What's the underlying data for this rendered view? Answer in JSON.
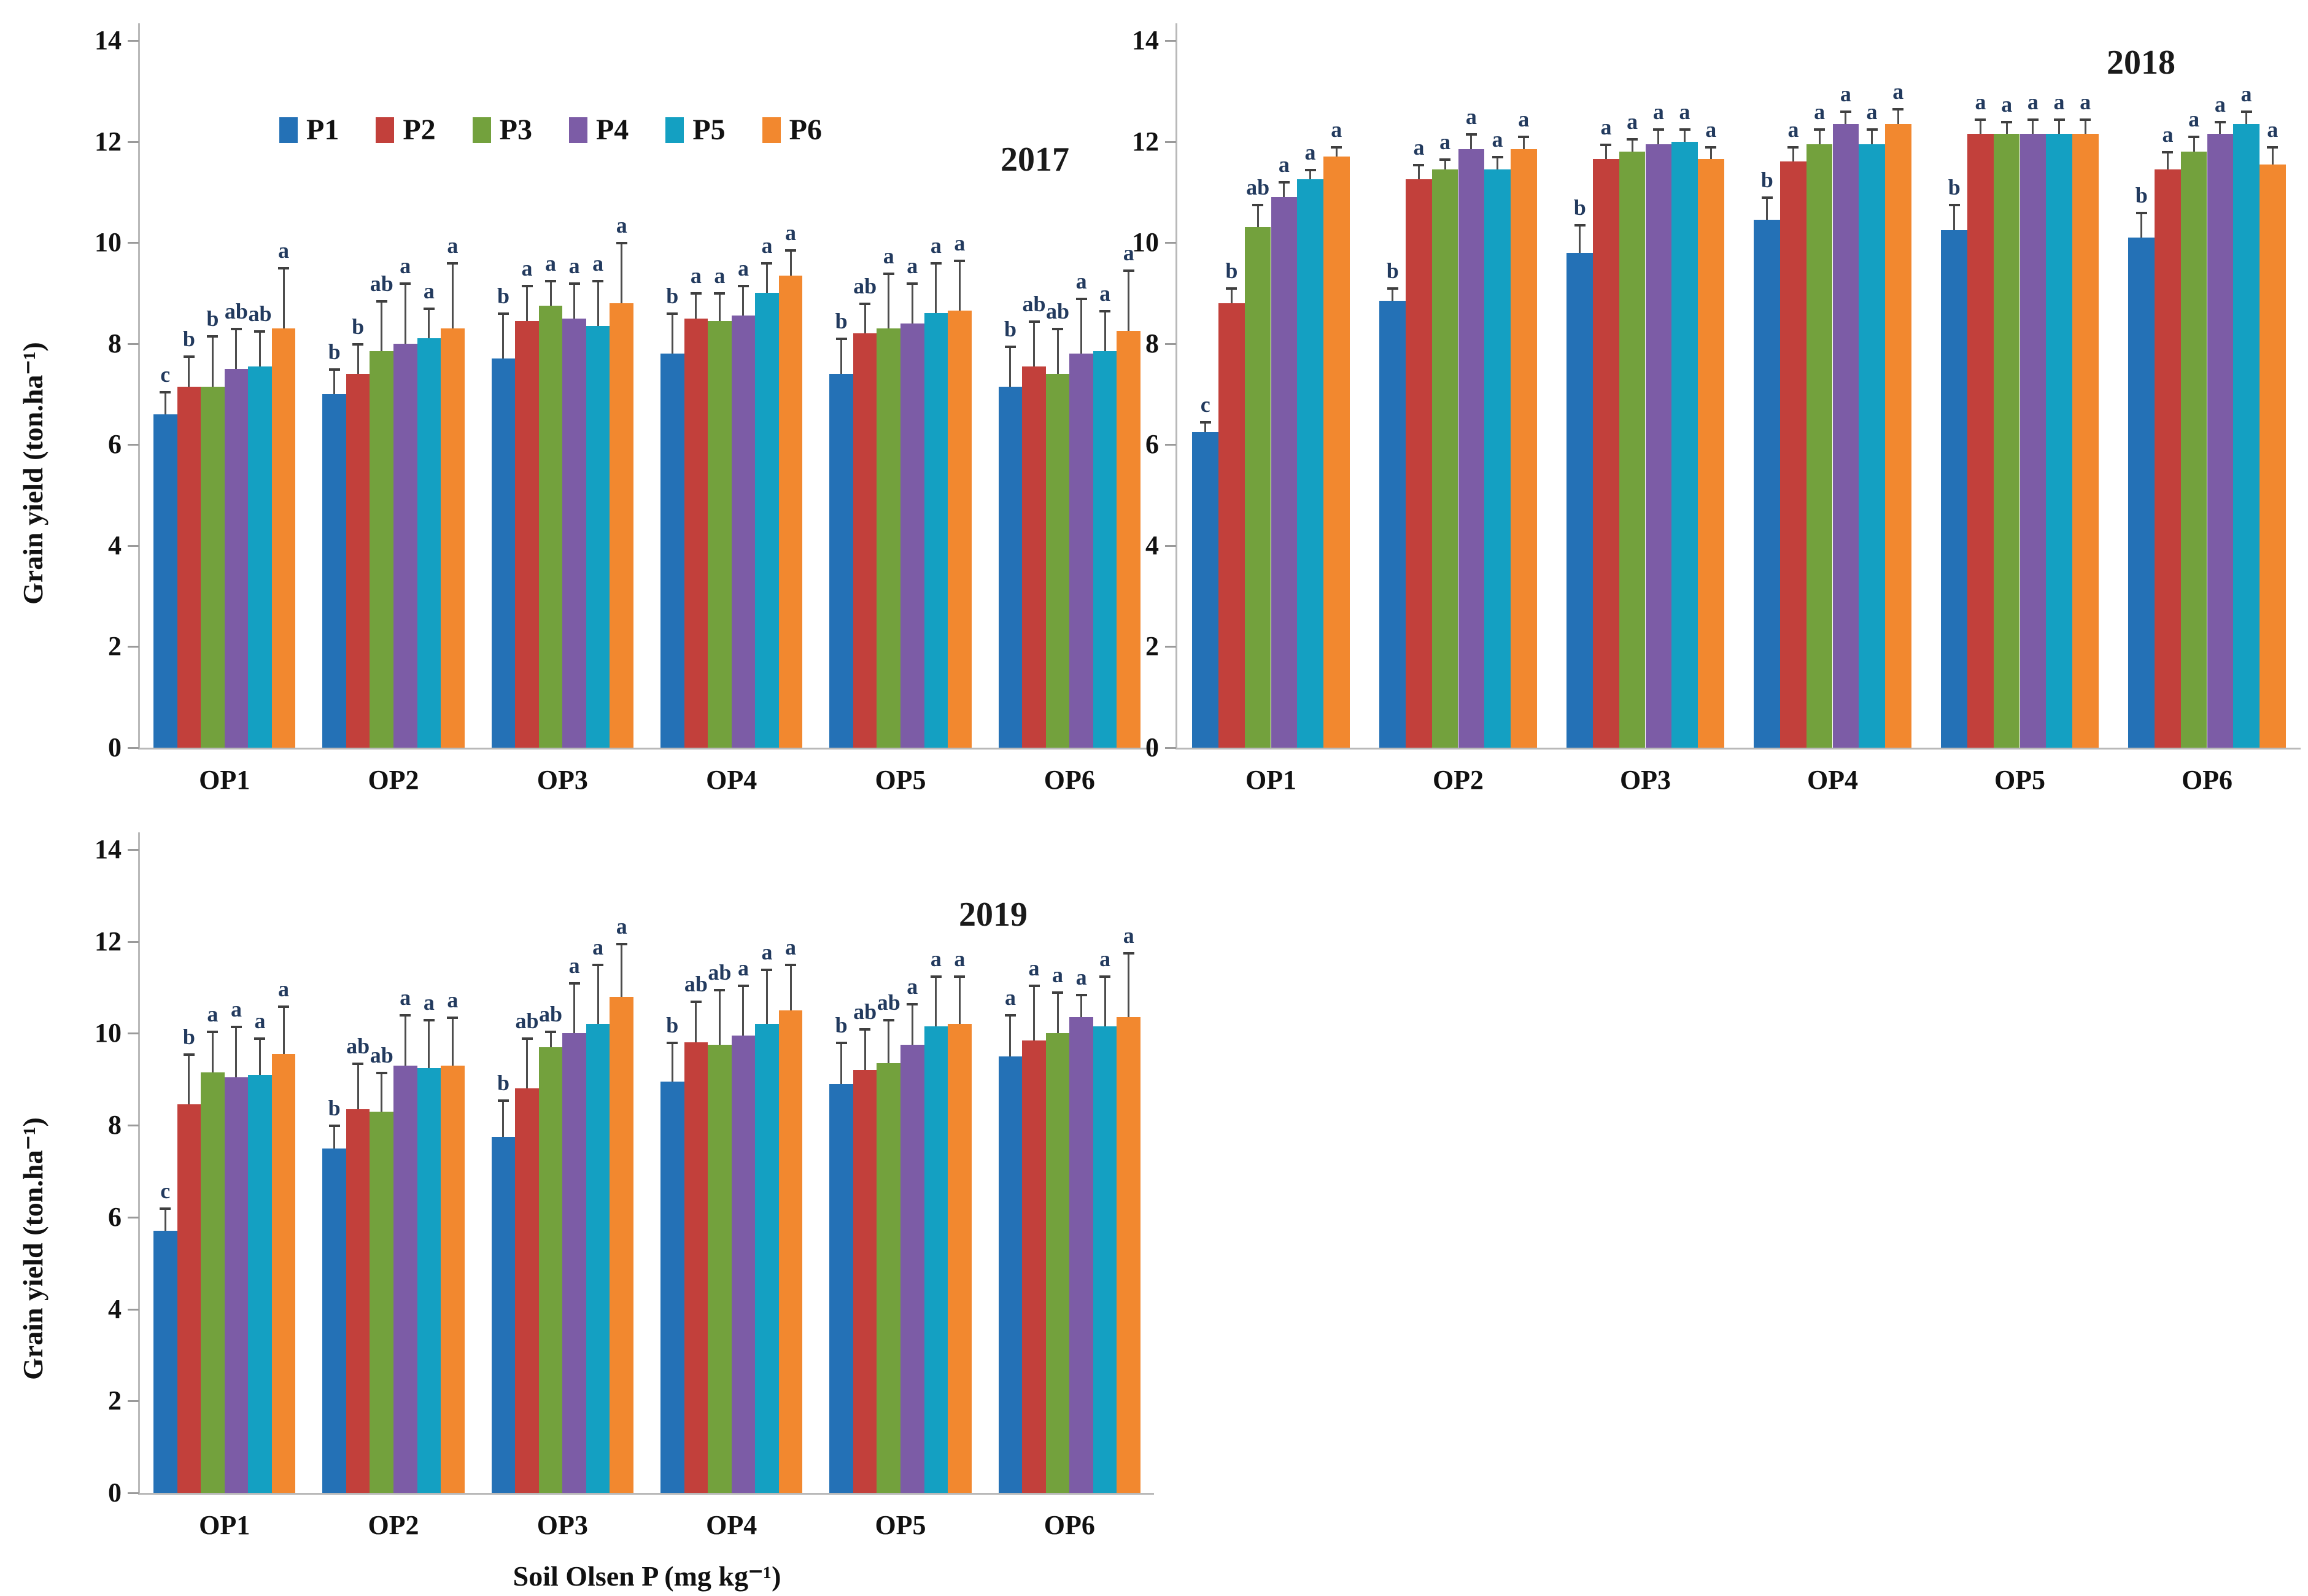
{
  "figure": {
    "background": "#ffffff",
    "error_bar_color": "#4d4d4d",
    "letter_color": "#223a5e",
    "axis_color": "#b9b9b9"
  },
  "chart_data": [
    {
      "type": "bar",
      "title": "2017",
      "ylabel": "Grain yield (ton.ha⁻¹)",
      "xlabel": "",
      "ylim": [
        0,
        14
      ],
      "yticks": [
        0,
        2,
        4,
        6,
        8,
        10,
        12,
        14
      ],
      "grid": false,
      "legend_position": "top-inside",
      "show_legend": true,
      "categories": [
        "OP1",
        "OP2",
        "OP3",
        "OP4",
        "OP5",
        "OP6"
      ],
      "series": [
        {
          "name": "P1",
          "color": "#2471b6",
          "values": [
            6.6,
            7.0,
            7.7,
            7.8,
            7.4,
            7.15
          ],
          "errors": [
            0.45,
            0.5,
            0.9,
            0.8,
            0.7,
            0.8
          ],
          "letters": [
            "c",
            "b",
            "b",
            "b",
            "b",
            "b"
          ]
        },
        {
          "name": "P2",
          "color": "#c2403b",
          "values": [
            7.15,
            7.4,
            8.45,
            8.5,
            8.2,
            7.55
          ],
          "errors": [
            0.6,
            0.6,
            0.7,
            0.5,
            0.6,
            0.9
          ],
          "letters": [
            "b",
            "b",
            "a",
            "a",
            "ab",
            "ab"
          ]
        },
        {
          "name": "P3",
          "color": "#73a13d",
          "values": [
            7.15,
            7.85,
            8.75,
            8.45,
            8.3,
            7.4
          ],
          "errors": [
            1.0,
            1.0,
            0.5,
            0.55,
            1.1,
            0.9
          ],
          "letters": [
            "b",
            "ab",
            "a",
            "a",
            "a",
            "ab"
          ]
        },
        {
          "name": "P4",
          "color": "#7c5ca6",
          "values": [
            7.5,
            8.0,
            8.5,
            8.55,
            8.4,
            7.8
          ],
          "errors": [
            0.8,
            1.2,
            0.7,
            0.6,
            0.8,
            1.1
          ],
          "letters": [
            "ab",
            "a",
            "a",
            "a",
            "a",
            "a"
          ]
        },
        {
          "name": "P5",
          "color": "#14a0c2",
          "values": [
            7.55,
            8.1,
            8.35,
            9.0,
            8.6,
            7.85
          ],
          "errors": [
            0.7,
            0.6,
            0.9,
            0.6,
            1.0,
            0.8
          ],
          "letters": [
            "ab",
            "a",
            "a",
            "a",
            "a",
            "a"
          ]
        },
        {
          "name": "P6",
          "color": "#f2882f",
          "values": [
            8.3,
            8.3,
            8.8,
            9.35,
            8.65,
            8.25
          ],
          "errors": [
            1.2,
            1.3,
            1.2,
            0.5,
            1.0,
            1.2
          ],
          "letters": [
            "a",
            "a",
            "a",
            "a",
            "a",
            "a"
          ]
        }
      ]
    },
    {
      "type": "bar",
      "title": "2018",
      "ylabel": "",
      "xlabel": "",
      "ylim": [
        0,
        14
      ],
      "yticks": [
        0,
        2,
        4,
        6,
        8,
        10,
        12,
        14
      ],
      "grid": false,
      "show_legend": false,
      "categories": [
        "OP1",
        "OP2",
        "OP3",
        "OP4",
        "OP5",
        "OP6"
      ],
      "series": [
        {
          "name": "P1",
          "color": "#2471b6",
          "values": [
            6.25,
            8.85,
            9.8,
            10.45,
            10.25,
            10.1
          ],
          "errors": [
            0.2,
            0.25,
            0.55,
            0.45,
            0.5,
            0.5
          ],
          "letters": [
            "c",
            "b",
            "b",
            "b",
            "b",
            "b"
          ]
        },
        {
          "name": "P2",
          "color": "#c2403b",
          "values": [
            8.8,
            11.25,
            11.65,
            11.6,
            12.15,
            11.45
          ],
          "errors": [
            0.3,
            0.3,
            0.3,
            0.3,
            0.3,
            0.35
          ],
          "letters": [
            "b",
            "a",
            "a",
            "a",
            "a",
            "a"
          ]
        },
        {
          "name": "P3",
          "color": "#73a13d",
          "values": [
            10.3,
            11.45,
            11.8,
            11.95,
            12.15,
            11.8
          ],
          "errors": [
            0.45,
            0.2,
            0.25,
            0.3,
            0.25,
            0.3
          ],
          "letters": [
            "ab",
            "a",
            "a",
            "a",
            "a",
            "a"
          ]
        },
        {
          "name": "P4",
          "color": "#7c5ca6",
          "values": [
            10.9,
            11.85,
            11.95,
            12.35,
            12.15,
            12.15
          ],
          "errors": [
            0.3,
            0.3,
            0.3,
            0.25,
            0.3,
            0.25
          ],
          "letters": [
            "a",
            "a",
            "a",
            "a",
            "a",
            "a"
          ]
        },
        {
          "name": "P5",
          "color": "#14a0c2",
          "values": [
            11.25,
            11.45,
            12.0,
            11.95,
            12.15,
            12.35
          ],
          "errors": [
            0.2,
            0.25,
            0.25,
            0.3,
            0.3,
            0.25
          ],
          "letters": [
            "a",
            "a",
            "a",
            "a",
            "a",
            "a"
          ]
        },
        {
          "name": "P6",
          "color": "#f2882f",
          "values": [
            11.7,
            11.85,
            11.65,
            12.35,
            12.15,
            11.55
          ],
          "errors": [
            0.2,
            0.25,
            0.25,
            0.3,
            0.3,
            0.35
          ],
          "letters": [
            "a",
            "a",
            "a",
            "a",
            "a",
            "a"
          ]
        }
      ]
    },
    {
      "type": "bar",
      "title": "2019",
      "ylabel": "Grain yield (ton.ha⁻¹)",
      "xlabel": "Soil Olsen P (mg kg⁻¹)",
      "ylim": [
        0,
        14
      ],
      "yticks": [
        0,
        2,
        4,
        6,
        8,
        10,
        12,
        14
      ],
      "grid": false,
      "show_legend": false,
      "categories": [
        "OP1",
        "OP2",
        "OP3",
        "OP4",
        "OP5",
        "OP6"
      ],
      "series": [
        {
          "name": "P1",
          "color": "#2471b6",
          "values": [
            5.7,
            7.5,
            7.75,
            8.95,
            8.9,
            9.5
          ],
          "errors": [
            0.5,
            0.5,
            0.8,
            0.85,
            0.9,
            0.9
          ],
          "letters": [
            "c",
            "b",
            "b",
            "b",
            "b",
            "a"
          ]
        },
        {
          "name": "P2",
          "color": "#c2403b",
          "values": [
            8.45,
            8.35,
            8.8,
            9.8,
            9.2,
            9.85
          ],
          "errors": [
            1.1,
            1.0,
            1.1,
            0.9,
            0.9,
            1.2
          ],
          "letters": [
            "b",
            "ab",
            "ab",
            "ab",
            "ab",
            "a"
          ]
        },
        {
          "name": "P3",
          "color": "#73a13d",
          "values": [
            9.15,
            8.3,
            9.7,
            9.75,
            9.35,
            10.0
          ],
          "errors": [
            0.9,
            0.85,
            0.35,
            1.2,
            0.95,
            0.9
          ],
          "letters": [
            "a",
            "ab",
            "ab",
            "ab",
            "ab",
            "a"
          ]
        },
        {
          "name": "P4",
          "color": "#7c5ca6",
          "values": [
            9.05,
            9.3,
            10.0,
            9.95,
            9.75,
            10.35
          ],
          "errors": [
            1.1,
            1.1,
            1.1,
            1.1,
            0.9,
            0.5
          ],
          "letters": [
            "a",
            "a",
            "a",
            "a",
            "a",
            "a"
          ]
        },
        {
          "name": "P5",
          "color": "#14a0c2",
          "values": [
            9.1,
            9.25,
            10.2,
            10.2,
            10.15,
            10.15
          ],
          "errors": [
            0.8,
            1.05,
            1.3,
            1.2,
            1.1,
            1.1
          ],
          "letters": [
            "a",
            "a",
            "a",
            "a",
            "a",
            "a"
          ]
        },
        {
          "name": "P6",
          "color": "#f2882f",
          "values": [
            9.55,
            9.3,
            10.8,
            10.5,
            10.2,
            10.35
          ],
          "errors": [
            1.05,
            1.05,
            1.15,
            1.0,
            1.05,
            1.4
          ],
          "letters": [
            "a",
            "a",
            "a",
            "a",
            "a",
            "a"
          ]
        }
      ]
    }
  ]
}
